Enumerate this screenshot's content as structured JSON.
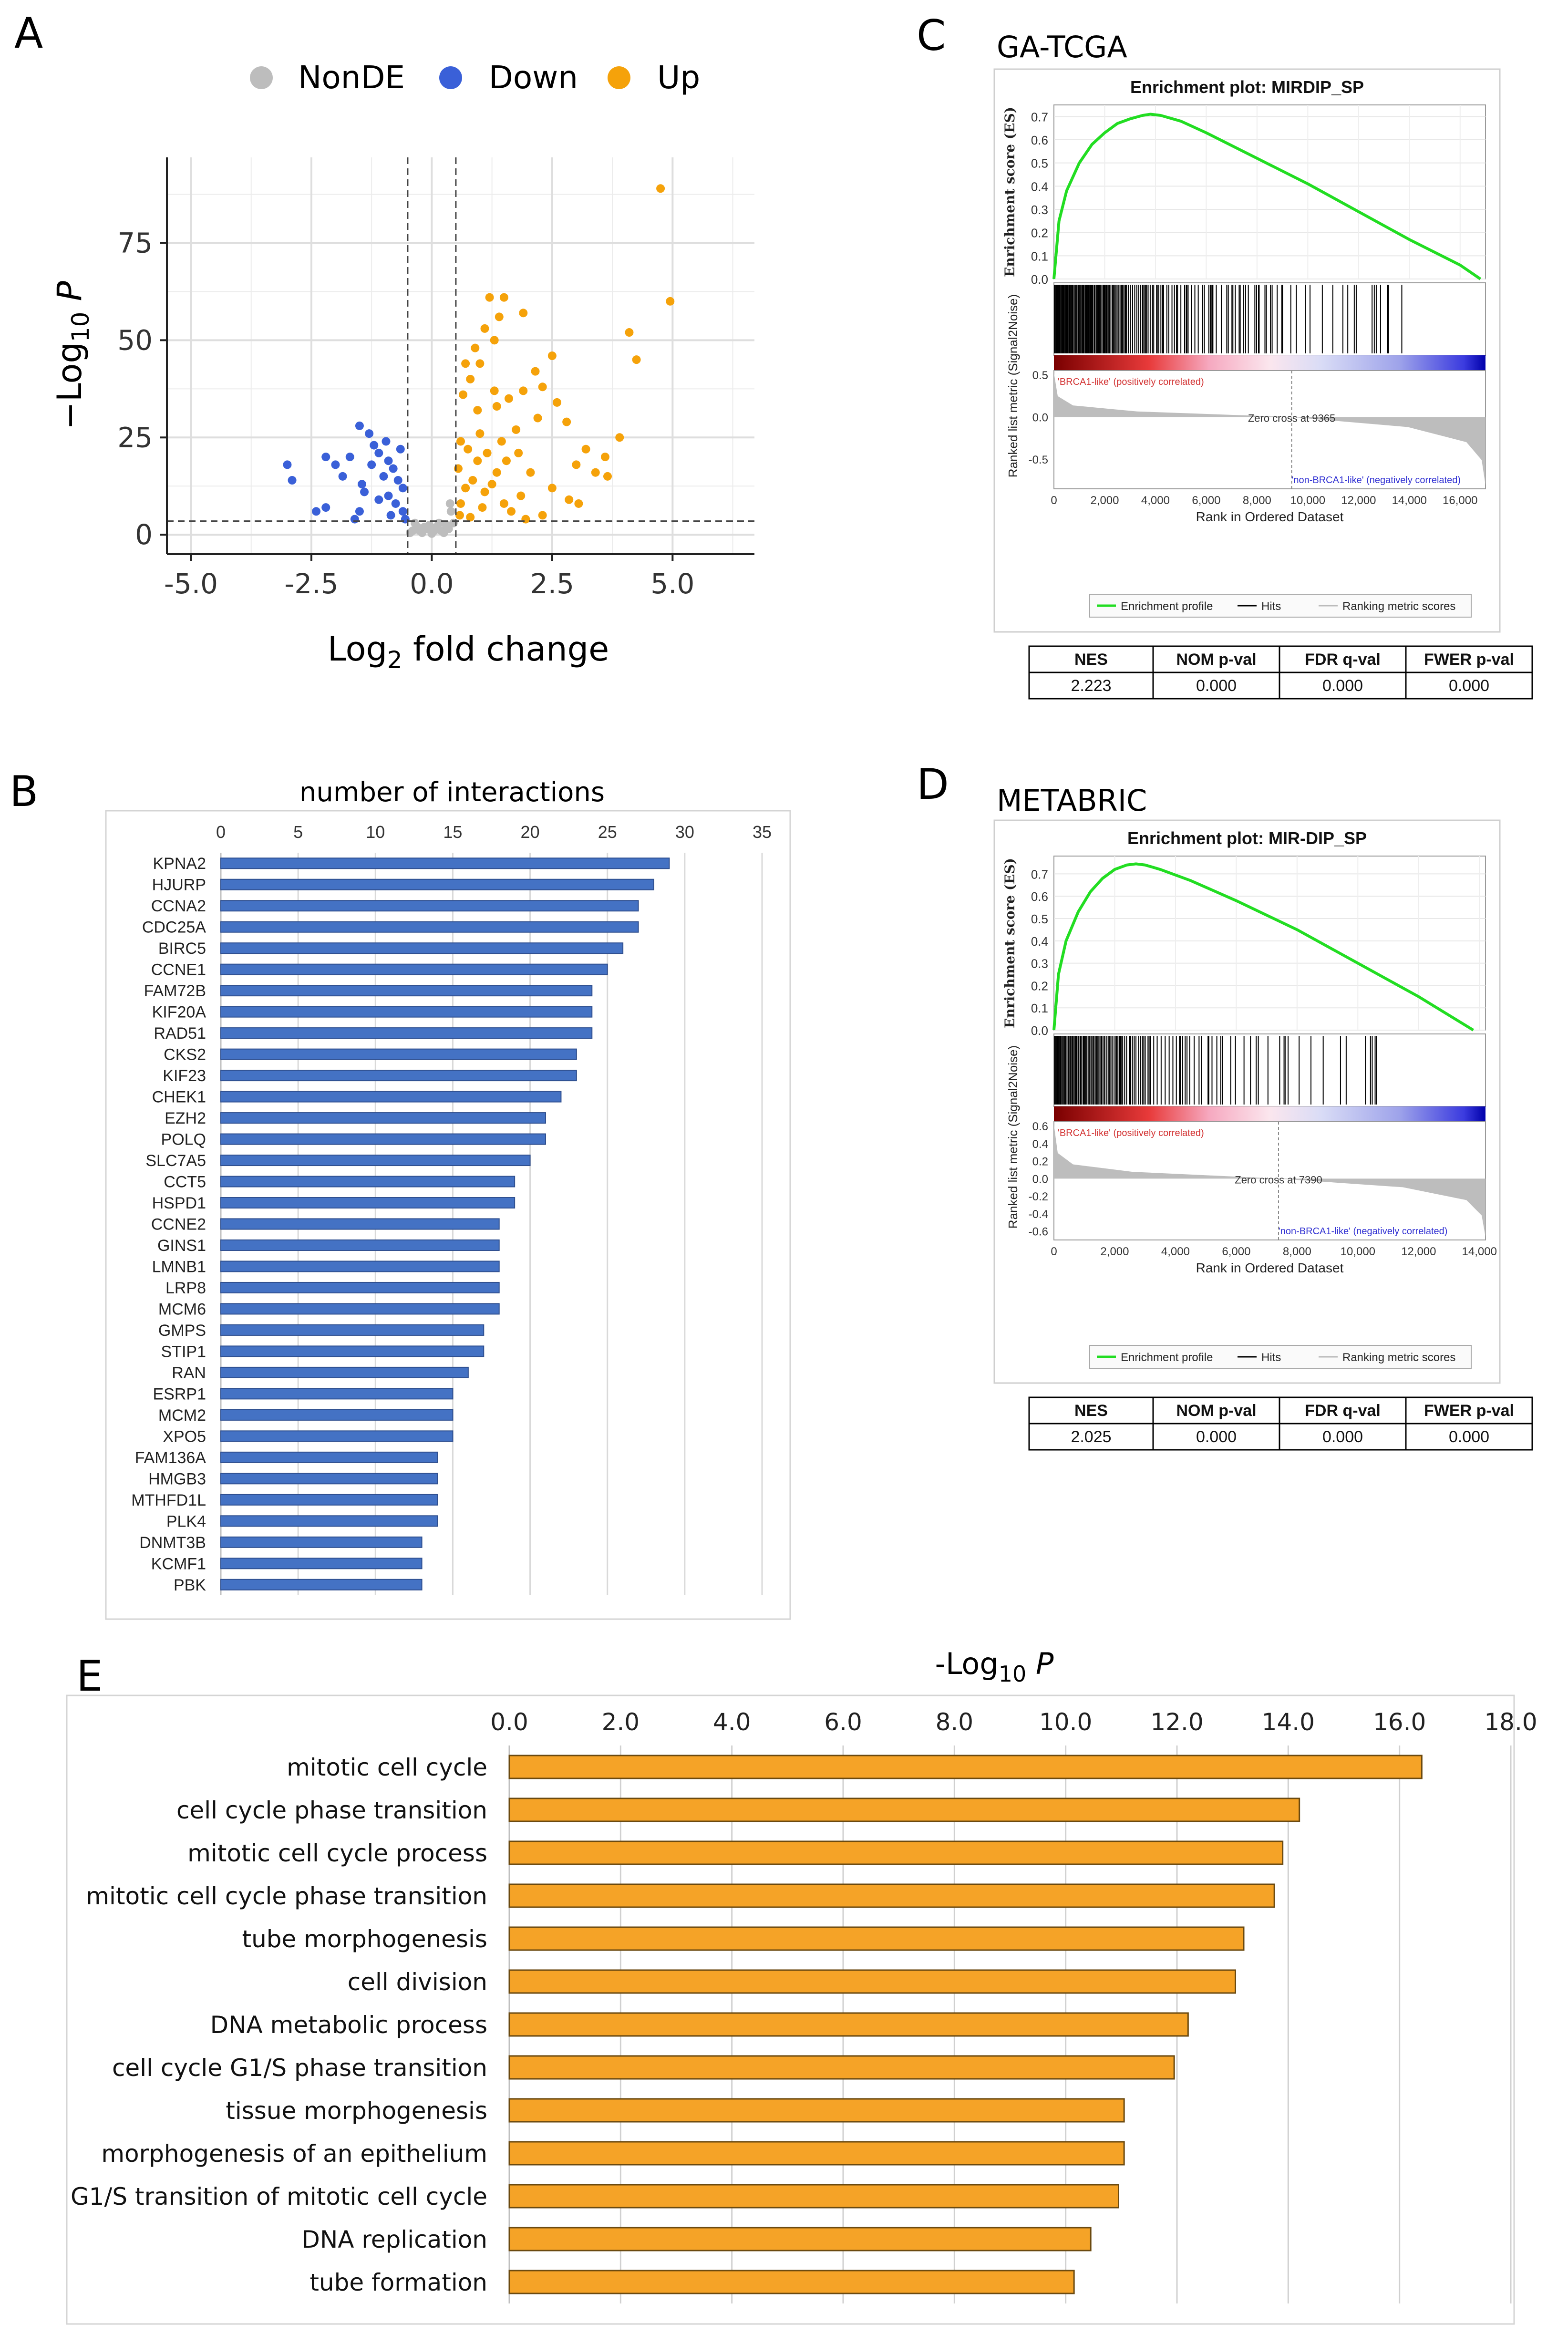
{
  "panel_labels": {
    "a": "A",
    "b": "B",
    "c": "C",
    "d": "D",
    "e": "E"
  },
  "colors": {
    "nonde": "#bdbdbd",
    "down": "#3a60d8",
    "up": "#f5a20a",
    "bar_blue": "#4472c4",
    "bar_orange": "#f5a327",
    "es_line": "#22dd22"
  },
  "chart_data": [
    {
      "id": "volcano",
      "type": "scatter",
      "title": "",
      "legend": [
        "NonDE",
        "Down",
        "Up"
      ],
      "xlabel_main": "Log",
      "xlabel_sub": "2",
      "xlabel_tail": " fold change",
      "ylabel_main": "−Log",
      "ylabel_sub": "10",
      "ylabel_tail": " P",
      "xlim": [
        -5.5,
        6.7
      ],
      "ylim": [
        -5,
        97
      ],
      "xticks": [
        -5.0,
        -2.5,
        0.0,
        2.5,
        5.0
      ],
      "xtick_labels": [
        "-5.0",
        "-2.5",
        "0.0",
        "2.5",
        "5.0"
      ],
      "yticks": [
        0,
        25,
        50,
        75
      ],
      "ytick_labels": [
        "0",
        "25",
        "50",
        "75"
      ],
      "fc_threshold": [
        -0.5,
        0.5
      ],
      "p_threshold": 3.5,
      "up_points": [
        [
          4.75,
          89
        ],
        [
          4.95,
          60
        ],
        [
          4.1,
          52
        ],
        [
          4.25,
          45
        ],
        [
          1.2,
          61
        ],
        [
          1.5,
          61
        ],
        [
          1.9,
          57
        ],
        [
          1.4,
          56
        ],
        [
          1.1,
          53
        ],
        [
          1.3,
          50
        ],
        [
          0.9,
          48
        ],
        [
          0.7,
          44
        ],
        [
          1.0,
          44
        ],
        [
          2.5,
          46
        ],
        [
          2.15,
          42
        ],
        [
          0.8,
          40
        ],
        [
          2.3,
          38
        ],
        [
          1.9,
          37
        ],
        [
          1.3,
          37
        ],
        [
          0.65,
          36
        ],
        [
          1.6,
          35
        ],
        [
          2.6,
          34
        ],
        [
          0.95,
          32
        ],
        [
          1.35,
          33
        ],
        [
          2.2,
          30
        ],
        [
          2.8,
          29
        ],
        [
          1.75,
          27
        ],
        [
          1.0,
          26
        ],
        [
          0.6,
          24
        ],
        [
          3.9,
          25
        ],
        [
          3.2,
          22
        ],
        [
          3.6,
          20
        ],
        [
          3.0,
          18
        ],
        [
          3.4,
          16
        ],
        [
          3.65,
          15
        ],
        [
          2.5,
          12
        ],
        [
          2.85,
          9
        ],
        [
          3.05,
          8
        ],
        [
          1.85,
          10
        ],
        [
          1.55,
          19
        ],
        [
          1.15,
          21
        ],
        [
          0.75,
          22
        ],
        [
          1.45,
          24
        ],
        [
          0.55,
          17
        ],
        [
          0.85,
          14
        ],
        [
          1.25,
          13
        ],
        [
          1.65,
          6
        ],
        [
          1.95,
          4
        ],
        [
          2.3,
          5
        ],
        [
          0.6,
          8
        ],
        [
          1.05,
          7
        ],
        [
          0.7,
          12
        ],
        [
          0.95,
          19
        ],
        [
          1.35,
          16
        ],
        [
          0.58,
          5
        ],
        [
          0.8,
          4.5
        ],
        [
          1.1,
          11
        ],
        [
          1.5,
          8
        ],
        [
          2.05,
          16
        ],
        [
          1.8,
          21
        ]
      ],
      "down_points": [
        [
          -3.0,
          18
        ],
        [
          -2.9,
          14
        ],
        [
          -2.2,
          20
        ],
        [
          -2.0,
          18
        ],
        [
          -1.85,
          15
        ],
        [
          -1.5,
          28
        ],
        [
          -1.3,
          26
        ],
        [
          -1.2,
          23
        ],
        [
          -1.1,
          21
        ],
        [
          -0.9,
          19
        ],
        [
          -0.8,
          17
        ],
        [
          -1.0,
          15
        ],
        [
          -0.7,
          14
        ],
        [
          -0.6,
          12
        ],
        [
          -1.4,
          11
        ],
        [
          -0.9,
          10
        ],
        [
          -0.75,
          8
        ],
        [
          -2.2,
          7
        ],
        [
          -2.4,
          6
        ],
        [
          -1.6,
          4
        ],
        [
          -1.5,
          6
        ],
        [
          -1.1,
          9
        ],
        [
          -0.6,
          6
        ],
        [
          -0.85,
          5
        ],
        [
          -0.55,
          4
        ],
        [
          -1.7,
          20
        ],
        [
          -1.25,
          18
        ],
        [
          -0.65,
          22
        ],
        [
          -0.95,
          24
        ],
        [
          -1.45,
          13
        ]
      ],
      "nonde_points": [
        [
          -0.4,
          1
        ],
        [
          -0.3,
          2
        ],
        [
          -0.2,
          0.5
        ],
        [
          -0.1,
          1.5
        ],
        [
          0.0,
          0.3
        ],
        [
          0.1,
          2
        ],
        [
          0.2,
          1
        ],
        [
          0.3,
          2.5
        ],
        [
          0.4,
          6
        ],
        [
          -0.35,
          3
        ],
        [
          0.05,
          1
        ],
        [
          -0.15,
          2
        ],
        [
          0.25,
          0.5
        ],
        [
          -0.45,
          0.5
        ],
        [
          0.35,
          1.5
        ],
        [
          0.15,
          3
        ],
        [
          -0.25,
          1
        ],
        [
          0.45,
          3
        ],
        [
          -0.05,
          2.5
        ],
        [
          0.38,
          8
        ]
      ]
    },
    {
      "id": "interactions",
      "type": "bar",
      "orientation": "horizontal",
      "title": "number of interactions",
      "xlim": [
        0,
        35
      ],
      "xticks": [
        0,
        5,
        10,
        15,
        20,
        25,
        30,
        35
      ],
      "xtick_labels": [
        "0",
        "5",
        "10",
        "15",
        "20",
        "25",
        "30",
        "35"
      ],
      "categories": [
        "KPNA2",
        "HJURP",
        "CCNA2",
        "CDC25A",
        "BIRC5",
        "CCNE1",
        "FAM72B",
        "KIF20A",
        "RAD51",
        "CKS2",
        "KIF23",
        "CHEK1",
        "EZH2",
        "POLQ",
        "SLC7A5",
        "CCT5",
        "HSPD1",
        "CCNE2",
        "GINS1",
        "LMNB1",
        "LRP8",
        "MCM6",
        "GMPS",
        "STIP1",
        "RAN",
        "ESRP1",
        "MCM2",
        "XPO5",
        "FAM136A",
        "HMGB3",
        "MTHFD1L",
        "PLK4",
        "DNMT3B",
        "KCMF1",
        "PBK"
      ],
      "values": [
        29,
        28,
        27,
        27,
        26,
        25,
        24,
        24,
        24,
        23,
        23,
        22,
        21,
        21,
        20,
        19,
        19,
        18,
        18,
        18,
        18,
        18,
        17,
        17,
        16,
        15,
        15,
        15,
        14,
        14,
        14,
        14,
        13,
        13,
        13
      ]
    },
    {
      "id": "gsea_tcga",
      "type": "line",
      "dataset_title": "GA-TCGA",
      "title": "Enrichment plot: MIRDIP_SP",
      "ylabel_top": "Enrichment score (ES)",
      "ylabel_bottom": "Ranked list metric (Signal2Noise)",
      "xlabel": "Rank in Ordered Dataset",
      "xlim": [
        0,
        17000
      ],
      "xticks": [
        0,
        2000,
        4000,
        6000,
        8000,
        10000,
        12000,
        14000,
        16000
      ],
      "xtick_labels": [
        "0",
        "2,000",
        "4,000",
        "6,000",
        "8,000",
        "10,000",
        "12,000",
        "14,000",
        "16,000"
      ],
      "es_ylim": [
        0,
        0.75
      ],
      "es_yticks": [
        "0.0",
        "0.1",
        "0.2",
        "0.3",
        "0.4",
        "0.5",
        "0.6",
        "0.7"
      ],
      "metric_ylim": [
        -0.85,
        0.55
      ],
      "metric_yticks": [
        "0.5",
        "0.0",
        "-0.5"
      ],
      "metric_tick_values": [
        0.5,
        0.0,
        -0.5
      ],
      "es_x": [
        0,
        200,
        500,
        1000,
        1500,
        2000,
        2500,
        3000,
        3500,
        3800,
        4200,
        5000,
        6000,
        8000,
        10000,
        12000,
        14000,
        16000,
        16800
      ],
      "es_y": [
        0.0,
        0.25,
        0.38,
        0.5,
        0.58,
        0.63,
        0.67,
        0.69,
        0.705,
        0.71,
        0.705,
        0.68,
        0.63,
        0.52,
        0.41,
        0.29,
        0.17,
        0.06,
        0.0
      ],
      "hit_end": 13900,
      "zero_cross_text": "Zero cross at 9365",
      "zero_cross": 9365,
      "pos_label": "'BRCA1-like' (positively correlated)",
      "neg_label": "'non-BRCA1-like' (negatively correlated)",
      "legend": [
        "Enrichment profile",
        "Hits",
        "Ranking metric scores"
      ],
      "table_headers": [
        "NES",
        "NOM p-val",
        "FDR q-val",
        "FWER p-val"
      ],
      "table_values": [
        "2.223",
        "0.000",
        "0.000",
        "0.000"
      ]
    },
    {
      "id": "gsea_metabric",
      "type": "line",
      "dataset_title": "METABRIC",
      "title": "Enrichment plot: MIR-DIP_SP",
      "ylabel_top": "Enrichment score (ES)",
      "ylabel_bottom": "Ranked list metric (Signal2Noise)",
      "xlabel": "Rank in Ordered Dataset",
      "xlim": [
        0,
        14200
      ],
      "xticks": [
        0,
        2000,
        4000,
        6000,
        8000,
        10000,
        12000,
        14000
      ],
      "xtick_labels": [
        "0",
        "2,000",
        "4,000",
        "6,000",
        "8,000",
        "10,000",
        "12,000",
        "14,000"
      ],
      "es_ylim": [
        0,
        0.78
      ],
      "es_yticks": [
        "0.0",
        "0.1",
        "0.2",
        "0.3",
        "0.4",
        "0.5",
        "0.6",
        "0.7"
      ],
      "metric_ylim": [
        -0.7,
        0.65
      ],
      "metric_yticks": [
        "0.6",
        "0.4",
        "0.2",
        "0.0",
        "-0.2",
        "-0.4",
        "-0.6"
      ],
      "metric_tick_values": [
        0.6,
        0.4,
        0.2,
        0.0,
        -0.2,
        -0.4,
        -0.6
      ],
      "es_x": [
        0,
        150,
        400,
        800,
        1200,
        1600,
        2000,
        2400,
        2700,
        3000,
        3500,
        4500,
        6000,
        8000,
        10000,
        12000,
        13800
      ],
      "es_y": [
        0.0,
        0.25,
        0.4,
        0.53,
        0.62,
        0.68,
        0.72,
        0.74,
        0.745,
        0.74,
        0.72,
        0.67,
        0.58,
        0.45,
        0.3,
        0.15,
        0.0
      ],
      "hit_end": 10800,
      "zero_cross_text": "Zero cross at 7390",
      "zero_cross": 7390,
      "pos_label": "'BRCA1-like' (positively correlated)",
      "neg_label": "'non-BRCA1-like' (negatively correlated)",
      "legend": [
        "Enrichment profile",
        "Hits",
        "Ranking metric scores"
      ],
      "table_headers": [
        "NES",
        "NOM p-val",
        "FDR q-val",
        "FWER p-val"
      ],
      "table_values": [
        "2.025",
        "0.000",
        "0.000",
        "0.000"
      ]
    },
    {
      "id": "go_terms",
      "type": "bar",
      "orientation": "horizontal",
      "title_main": "-Log",
      "title_sub": "10",
      "title_tail": " P",
      "xlim": [
        0,
        18
      ],
      "xticks": [
        0,
        2,
        4,
        6,
        8,
        10,
        12,
        14,
        16,
        18
      ],
      "xtick_labels": [
        "0.0",
        "2.0",
        "4.0",
        "6.0",
        "8.0",
        "10.0",
        "12.0",
        "14.0",
        "16.0",
        "18.0"
      ],
      "categories": [
        "mitotic cell cycle",
        "cell cycle phase transition",
        "mitotic cell cycle process",
        "mitotic cell cycle phase transition",
        "tube morphogenesis",
        "cell division",
        "DNA metabolic process",
        "cell cycle G1/S phase transition",
        "tissue morphogenesis",
        "morphogenesis of an epithelium",
        "G1/S transition of mitotic cell cycle",
        "DNA replication",
        "tube formation"
      ],
      "values": [
        16.4,
        14.2,
        13.9,
        13.75,
        13.2,
        13.05,
        12.2,
        11.95,
        11.05,
        11.05,
        10.95,
        10.45,
        10.15
      ]
    }
  ]
}
